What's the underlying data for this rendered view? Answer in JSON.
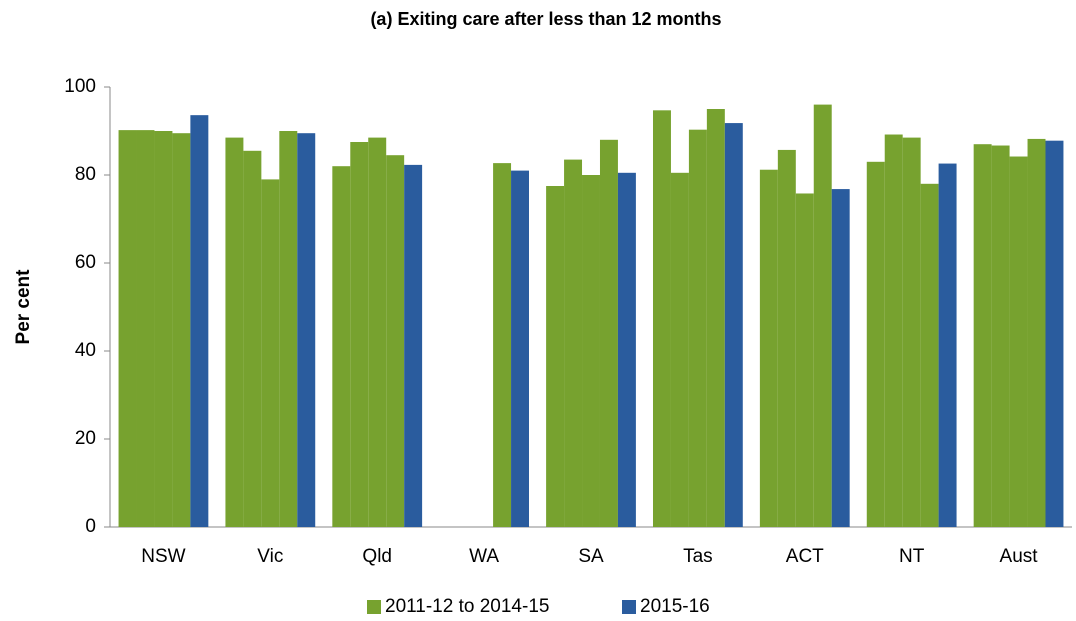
{
  "chart_data": {
    "type": "bar",
    "title": "(a) Exiting care after less than 12 months",
    "y_label": "Per cent",
    "categories": [
      "NSW",
      "Vic",
      "Qld",
      "WA",
      "SA",
      "Tas",
      "ACT",
      "NT",
      "Aust"
    ],
    "series": [
      {
        "name": "2011-12 to 2014-15",
        "color": "#77a22f",
        "values": [
          [
            90.2,
            90.2,
            90.0,
            89.5
          ],
          [
            88.5,
            85.5,
            79.0,
            90.0
          ],
          [
            82.0,
            87.5,
            88.5,
            84.5
          ],
          [
            null,
            null,
            null,
            82.7
          ],
          [
            77.5,
            83.5,
            80.0,
            88.0
          ],
          [
            94.7,
            80.5,
            90.3,
            95.0
          ],
          [
            81.2,
            85.7,
            75.8,
            96.0
          ],
          [
            83.0,
            89.2,
            88.5,
            78.0
          ],
          [
            87.0,
            86.7,
            84.2,
            88.2
          ]
        ]
      },
      {
        "name": "2015-16",
        "color": "#2a5c9e",
        "values": [
          93.6,
          89.5,
          82.3,
          81.0,
          80.5,
          91.8,
          76.8,
          82.6,
          87.8
        ]
      }
    ],
    "ylim": [
      0,
      100
    ],
    "yticks": [
      0,
      20,
      40,
      60,
      80,
      100
    ],
    "legend": "bottom"
  }
}
